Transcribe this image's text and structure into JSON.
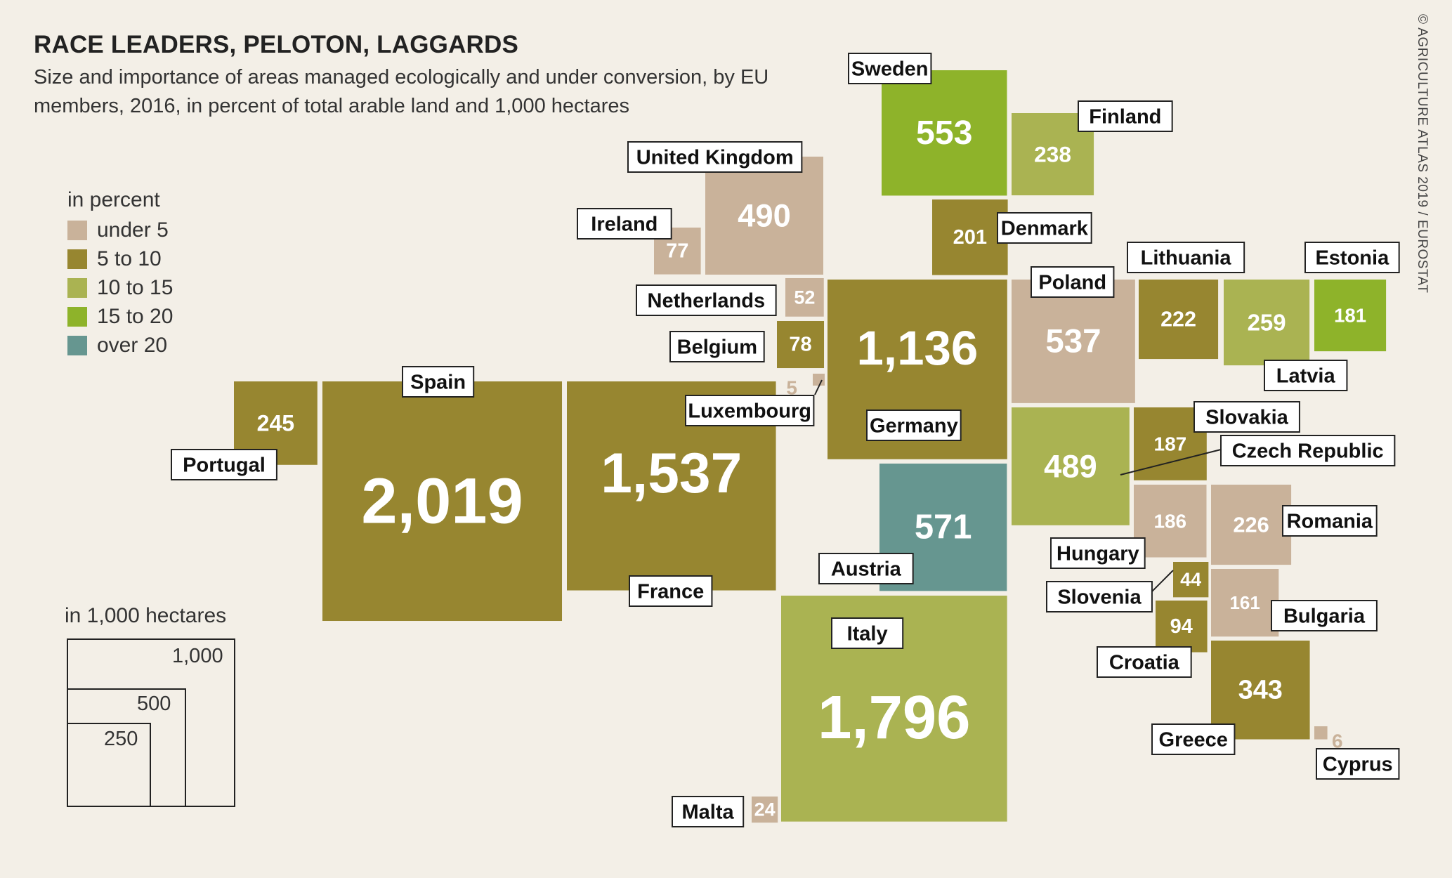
{
  "header": {
    "title": "RACE LEADERS, PELOTON, LAGGARDS",
    "subtitle": "Size and importance of areas managed ecologically and under conversion, by EU members, 2016, in percent of total arable land and 1,000 hectares",
    "source": "© AGRICULTURE ATLAS 2019 / EUROSTAT"
  },
  "legend": {
    "title": "in percent",
    "items": [
      {
        "label": "under 5",
        "color": "#c9b29a"
      },
      {
        "label": "5 to 10",
        "color": "#978630"
      },
      {
        "label": "10 to 15",
        "color": "#aab352"
      },
      {
        "label": "15 to 20",
        "color": "#8eb32a"
      },
      {
        "label": "over 20",
        "color": "#669690"
      }
    ]
  },
  "size_legend": {
    "title": "in 1,000 hectares",
    "boxes": [
      {
        "label": "1,000"
      },
      {
        "label": "500"
      },
      {
        "label": "250"
      }
    ]
  },
  "chart_data": {
    "type": "treemap",
    "value_unit": "1,000 hectares",
    "color_unit": "percent of total arable land",
    "items": [
      {
        "name": "Sweden",
        "value": 553,
        "label": "553",
        "category": "15 to 20"
      },
      {
        "name": "Finland",
        "value": 238,
        "label": "238",
        "category": "10 to 15"
      },
      {
        "name": "United Kingdom",
        "value": 490,
        "label": "490",
        "category": "under 5"
      },
      {
        "name": "Ireland",
        "value": 77,
        "label": "77",
        "category": "under 5"
      },
      {
        "name": "Denmark",
        "value": 201,
        "label": "201",
        "category": "5 to 10"
      },
      {
        "name": "Netherlands",
        "value": 52,
        "label": "52",
        "category": "under 5"
      },
      {
        "name": "Belgium",
        "value": 78,
        "label": "78",
        "category": "5 to 10"
      },
      {
        "name": "Luxembourg",
        "value": 5,
        "label": "5",
        "category": "under 5"
      },
      {
        "name": "Germany",
        "value": 1136,
        "label": "1,136",
        "category": "5 to 10"
      },
      {
        "name": "Poland",
        "value": 537,
        "label": "537",
        "category": "under 5"
      },
      {
        "name": "Lithuania",
        "value": 222,
        "label": "222",
        "category": "5 to 10"
      },
      {
        "name": "Latvia",
        "value": 259,
        "label": "259",
        "category": "10 to 15"
      },
      {
        "name": "Estonia",
        "value": 181,
        "label": "181",
        "category": "15 to 20"
      },
      {
        "name": "Portugal",
        "value": 245,
        "label": "245",
        "category": "5 to 10"
      },
      {
        "name": "Spain",
        "value": 2019,
        "label": "2,019",
        "category": "5 to 10"
      },
      {
        "name": "France",
        "value": 1537,
        "label": "1,537",
        "category": "5 to 10"
      },
      {
        "name": "Czech Republic",
        "value": 489,
        "label": "489",
        "category": "10 to 15"
      },
      {
        "name": "Slovakia",
        "value": 187,
        "label": "187",
        "category": "5 to 10"
      },
      {
        "name": "Austria",
        "value": 571,
        "label": "571",
        "category": "over 20"
      },
      {
        "name": "Hungary",
        "value": 186,
        "label": "186",
        "category": "under 5"
      },
      {
        "name": "Romania",
        "value": 226,
        "label": "226",
        "category": "under 5"
      },
      {
        "name": "Slovenia",
        "value": 44,
        "label": "44",
        "category": "5 to 10"
      },
      {
        "name": "Croatia",
        "value": 94,
        "label": "94",
        "category": "5 to 10"
      },
      {
        "name": "Bulgaria",
        "value": 161,
        "label": "161",
        "category": "under 5"
      },
      {
        "name": "Italy",
        "value": 1796,
        "label": "1,796",
        "category": "10 to 15"
      },
      {
        "name": "Greece",
        "value": 343,
        "label": "343",
        "category": "5 to 10"
      },
      {
        "name": "Cyprus",
        "value": 6,
        "label": "6",
        "category": "under 5"
      },
      {
        "name": "Malta",
        "value": 24,
        "label": "24",
        "category": "under 5"
      }
    ]
  }
}
